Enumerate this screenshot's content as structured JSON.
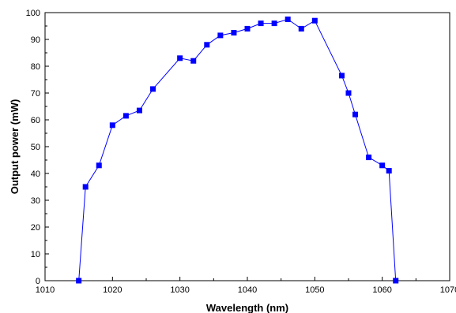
{
  "chart_data": {
    "type": "line",
    "title": "",
    "xlabel": "Wavelength (nm)",
    "ylabel": "Output power (mW)",
    "xlim": [
      1010,
      1070
    ],
    "ylim": [
      0,
      100
    ],
    "x_ticks": [
      1010,
      1020,
      1030,
      1040,
      1050,
      1060,
      1070
    ],
    "y_ticks": [
      0,
      10,
      20,
      30,
      40,
      50,
      60,
      70,
      80,
      90,
      100
    ],
    "grid": false,
    "legend": "none",
    "marker": "square",
    "series_color": "#0000ff",
    "series": [
      {
        "x": [
          1015,
          1016,
          1018,
          1020,
          1022,
          1024,
          1026,
          1030,
          1032,
          1034,
          1036,
          1038,
          1040,
          1042,
          1044,
          1046,
          1048,
          1050,
          1054,
          1055,
          1056,
          1058,
          1060,
          1061,
          1062
        ],
        "y": [
          0,
          35,
          43,
          58,
          61.5,
          63.5,
          71.5,
          83,
          82,
          88,
          91.5,
          92.5,
          94,
          96,
          96,
          97.5,
          94,
          97,
          76.5,
          70,
          62,
          46,
          43,
          41,
          0
        ]
      }
    ]
  }
}
